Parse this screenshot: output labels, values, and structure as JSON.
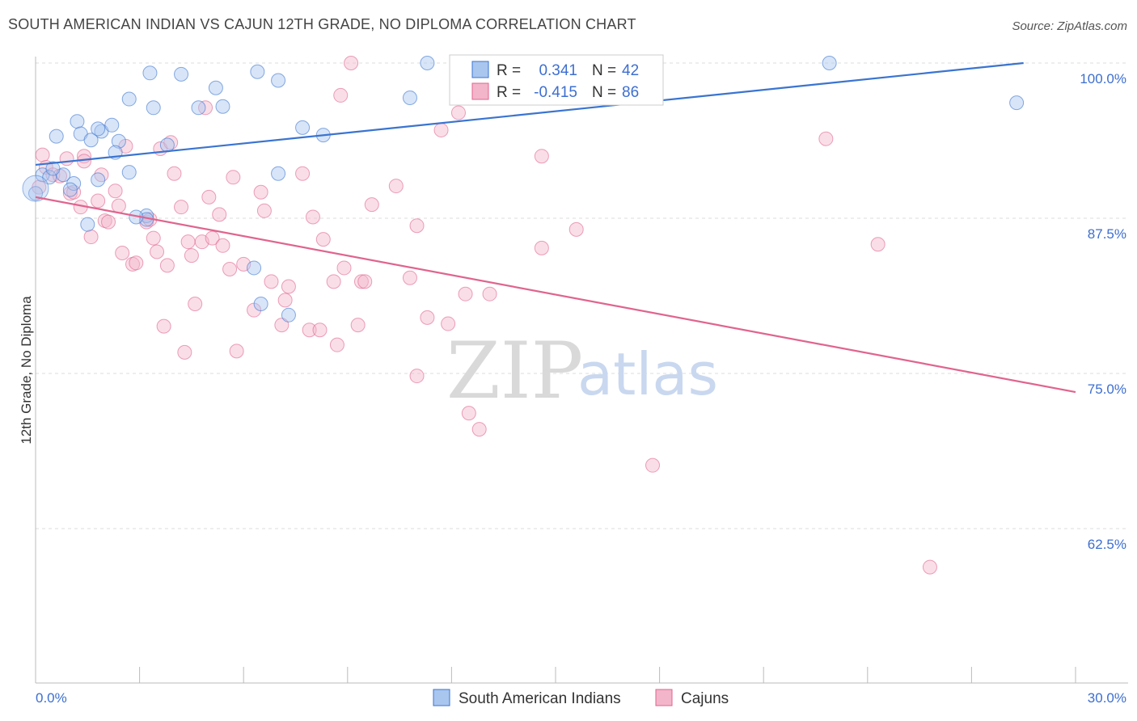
{
  "header": {
    "title": "SOUTH AMERICAN INDIAN VS CAJUN 12TH GRADE, NO DIPLOMA CORRELATION CHART",
    "source": "Source: ZipAtlas.com"
  },
  "watermark": {
    "zip": "ZIP",
    "atlas": "atlas"
  },
  "colors": {
    "blue": "#3a74d0",
    "blue_fill": "#a9c6ef",
    "pink": "#e0648f",
    "pink_fill": "#f3b5c9",
    "tick_label": "#3d6fd0",
    "grid": "#dddddd"
  },
  "legend_box": {
    "rows": [
      {
        "r_label": "R =",
        "r_value": "0.341",
        "n_label": "N =",
        "n_value": "42",
        "series": "blue"
      },
      {
        "r_label": "R =",
        "r_value": "-0.415",
        "n_label": "N =",
        "n_value": "86",
        "series": "pink"
      }
    ]
  },
  "bottom_legend": [
    {
      "label": "South American Indians",
      "series": "blue"
    },
    {
      "label": "Cajuns",
      "series": "pink"
    }
  ],
  "chart_data": {
    "type": "scatter",
    "title": "SOUTH AMERICAN INDIAN VS CAJUN 12TH GRADE, NO DIPLOMA CORRELATION CHART",
    "xlabel": "",
    "ylabel": "12th Grade, No Diploma",
    "xlim": [
      0,
      30
    ],
    "ylim": [
      50,
      102
    ],
    "y_ticks": [
      62.5,
      75.0,
      87.5,
      100.0
    ],
    "y_tick_labels": [
      "62.5%",
      "75.0%",
      "87.5%",
      "100.0%"
    ],
    "x_tick_labels": [
      "0.0%",
      "30.0%"
    ],
    "grid": true,
    "legend_position": "top-center",
    "series": [
      {
        "name": "South American Indians",
        "color": "#3a74d0",
        "r": 0.341,
        "n": 42,
        "trend": [
          [
            0,
            91.8
          ],
          [
            28.5,
            100.0
          ]
        ],
        "points": [
          [
            0.0,
            89.5
          ],
          [
            0.2,
            91.0
          ],
          [
            0.4,
            90.8
          ],
          [
            0.6,
            94.1
          ],
          [
            0.8,
            91.0
          ],
          [
            1.1,
            90.3
          ],
          [
            1.0,
            89.8
          ],
          [
            1.2,
            95.3
          ],
          [
            1.3,
            94.3
          ],
          [
            1.6,
            93.8
          ],
          [
            1.9,
            94.5
          ],
          [
            1.8,
            94.7
          ],
          [
            2.2,
            95.0
          ],
          [
            1.8,
            90.6
          ],
          [
            2.4,
            93.7
          ],
          [
            2.3,
            92.8
          ],
          [
            2.7,
            91.2
          ],
          [
            2.7,
            97.1
          ],
          [
            3.2,
            87.7
          ],
          [
            3.2,
            87.4
          ],
          [
            3.3,
            99.2
          ],
          [
            3.4,
            96.4
          ],
          [
            3.8,
            93.4
          ],
          [
            4.2,
            99.1
          ],
          [
            4.7,
            96.4
          ],
          [
            5.2,
            98.0
          ],
          [
            5.4,
            96.5
          ],
          [
            6.4,
            99.3
          ],
          [
            7.0,
            98.6
          ],
          [
            6.3,
            83.5
          ],
          [
            6.5,
            80.6
          ],
          [
            7.0,
            91.1
          ],
          [
            7.3,
            79.7
          ],
          [
            7.7,
            94.8
          ],
          [
            8.3,
            94.2
          ],
          [
            10.8,
            97.2
          ],
          [
            11.3,
            100.0
          ],
          [
            22.9,
            100.0
          ],
          [
            28.3,
            96.8
          ],
          [
            1.5,
            87.0
          ],
          [
            0.5,
            91.5
          ],
          [
            2.9,
            87.6
          ]
        ]
      },
      {
        "name": "Cajuns",
        "color": "#e0648f",
        "r": -0.415,
        "n": 86,
        "trend": [
          [
            0,
            89.2
          ],
          [
            30,
            73.5
          ]
        ],
        "points": [
          [
            0.1,
            90.0
          ],
          [
            0.2,
            92.6
          ],
          [
            0.3,
            91.6
          ],
          [
            0.5,
            91.0
          ],
          [
            0.7,
            90.9
          ],
          [
            0.9,
            92.3
          ],
          [
            1.0,
            89.5
          ],
          [
            1.1,
            89.6
          ],
          [
            1.3,
            88.4
          ],
          [
            1.4,
            92.5
          ],
          [
            1.4,
            92.1
          ],
          [
            1.6,
            86.0
          ],
          [
            1.8,
            88.9
          ],
          [
            1.9,
            91.0
          ],
          [
            2.0,
            87.3
          ],
          [
            2.1,
            87.2
          ],
          [
            2.3,
            89.7
          ],
          [
            2.4,
            88.5
          ],
          [
            2.5,
            84.7
          ],
          [
            2.6,
            93.3
          ],
          [
            2.8,
            83.8
          ],
          [
            2.9,
            83.9
          ],
          [
            3.2,
            87.2
          ],
          [
            3.3,
            87.4
          ],
          [
            3.4,
            85.9
          ],
          [
            3.5,
            84.8
          ],
          [
            3.6,
            93.1
          ],
          [
            3.7,
            78.8
          ],
          [
            3.8,
            83.7
          ],
          [
            3.9,
            93.6
          ],
          [
            4.0,
            91.1
          ],
          [
            4.2,
            88.4
          ],
          [
            4.3,
            76.7
          ],
          [
            4.4,
            85.6
          ],
          [
            4.5,
            84.5
          ],
          [
            4.6,
            80.6
          ],
          [
            4.8,
            85.6
          ],
          [
            4.9,
            96.4
          ],
          [
            5.0,
            89.2
          ],
          [
            5.1,
            85.9
          ],
          [
            5.3,
            87.8
          ],
          [
            5.4,
            85.3
          ],
          [
            5.6,
            83.4
          ],
          [
            5.7,
            90.8
          ],
          [
            5.8,
            76.8
          ],
          [
            6.0,
            83.8
          ],
          [
            6.3,
            80.1
          ],
          [
            6.5,
            89.6
          ],
          [
            6.6,
            88.1
          ],
          [
            6.8,
            82.4
          ],
          [
            7.1,
            78.9
          ],
          [
            7.2,
            80.9
          ],
          [
            7.3,
            82.0
          ],
          [
            7.7,
            91.1
          ],
          [
            7.9,
            78.5
          ],
          [
            8.0,
            87.6
          ],
          [
            8.2,
            78.5
          ],
          [
            8.3,
            85.8
          ],
          [
            8.6,
            82.4
          ],
          [
            8.7,
            77.3
          ],
          [
            8.8,
            97.4
          ],
          [
            8.9,
            83.5
          ],
          [
            9.1,
            100.0
          ],
          [
            9.3,
            78.9
          ],
          [
            9.4,
            82.4
          ],
          [
            9.5,
            82.4
          ],
          [
            9.7,
            88.6
          ],
          [
            10.4,
            90.1
          ],
          [
            10.8,
            82.7
          ],
          [
            11.0,
            74.8
          ],
          [
            11.0,
            86.9
          ],
          [
            11.3,
            79.5
          ],
          [
            11.7,
            94.6
          ],
          [
            11.9,
            79.0
          ],
          [
            12.2,
            96.0
          ],
          [
            12.4,
            81.4
          ],
          [
            12.5,
            71.8
          ],
          [
            12.8,
            70.5
          ],
          [
            13.1,
            81.4
          ],
          [
            14.6,
            92.5
          ],
          [
            14.6,
            85.1
          ],
          [
            15.6,
            86.6
          ],
          [
            17.8,
            67.6
          ],
          [
            22.8,
            93.9
          ],
          [
            24.3,
            85.4
          ],
          [
            25.8,
            59.4
          ]
        ]
      }
    ]
  }
}
